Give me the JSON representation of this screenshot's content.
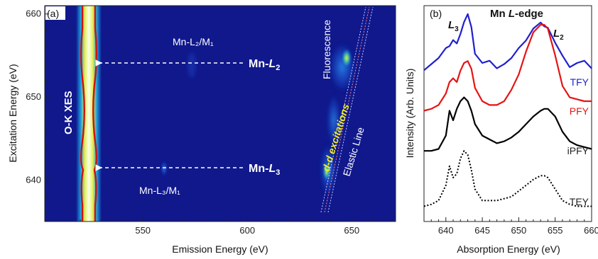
{
  "chart_data": [
    {
      "type": "heatmap",
      "panel_label": "(a)",
      "xlabel": "Emission Energy (eV)",
      "ylabel": "Excitation Energy (eV)",
      "xlim": [
        503,
        671
      ],
      "ylim": [
        635,
        661
      ],
      "xticks": [
        "550",
        "600",
        "650"
      ],
      "xtick_values": [
        550,
        600,
        650
      ],
      "yticks": [
        "640",
        "650",
        "660"
      ],
      "ytick_values": [
        640,
        650,
        660
      ],
      "colors": {
        "background": "#10188c",
        "hot": "#e6f040",
        "red": "#d01010"
      },
      "features": {
        "oxygen_line_emission_center": 525,
        "elastic_line_slope": 1
      },
      "annotations": {
        "o_k_xes": "O-K XES",
        "mn_l2": "Mn-",
        "mn_l2_sub": "L",
        "mn_l2_idx": "2",
        "mn_l3": "Mn-",
        "mn_l3_sub": "L",
        "mn_l3_idx": "3",
        "mn_l2m1": "Mn-L₂/M₁",
        "mn_l3m1": "Mn-L₃/M₁",
        "fluorescence": "Fluorescence",
        "dd": "d-d excitations",
        "elastic": "Elastic Line"
      },
      "arrows": [
        {
          "target": "Mn-L2",
          "excitation_energy": 654
        },
        {
          "target": "Mn-L3",
          "excitation_energy": 641.5
        }
      ]
    },
    {
      "type": "line",
      "panel_label": "(b)",
      "title": "Mn L-edge",
      "title_prefix": "Mn ",
      "title_em": "L",
      "title_suffix": "-edge",
      "xlabel": "Absorption Energy (eV)",
      "ylabel": "Intensity (Arb. Units)",
      "xlim": [
        637,
        660
      ],
      "xticks": [
        "640",
        "645",
        "650",
        "655",
        "660"
      ],
      "xtick_values": [
        640,
        645,
        650,
        655,
        660
      ],
      "peak_labels": {
        "l3": "L",
        "l3_idx": "3",
        "l2": "L",
        "l2_idx": "2"
      },
      "x": [
        637,
        638,
        639,
        640,
        640.5,
        641,
        641.5,
        642,
        642.5,
        643,
        643.5,
        644,
        645,
        646,
        647,
        648,
        649,
        650,
        651,
        652,
        653,
        653.5,
        654,
        655,
        656,
        657,
        658,
        659,
        660
      ],
      "series": [
        {
          "name": "TFY",
          "color": "#1f1fcf",
          "style": "solid",
          "values": [
            0.78,
            0.8,
            0.82,
            0.86,
            0.9,
            0.92,
            0.89,
            0.97,
            1.02,
            1.05,
            0.97,
            0.86,
            0.8,
            0.8,
            0.79,
            0.8,
            0.82,
            0.86,
            0.93,
            0.98,
            1.0,
            1.01,
            0.99,
            0.9,
            0.82,
            0.79,
            0.8,
            0.8,
            0.79
          ]
        },
        {
          "name": "PFY",
          "color": "#e41414",
          "style": "solid",
          "values": [
            0.55,
            0.56,
            0.58,
            0.64,
            0.7,
            0.72,
            0.7,
            0.76,
            0.8,
            0.81,
            0.77,
            0.67,
            0.6,
            0.58,
            0.58,
            0.6,
            0.66,
            0.74,
            0.86,
            0.96,
            1.0,
            1.0,
            0.98,
            0.84,
            0.68,
            0.62,
            0.61,
            0.6,
            0.6
          ]
        },
        {
          "name": "iPFY",
          "color": "#000000",
          "style": "solid",
          "values": [
            0.34,
            0.34,
            0.35,
            0.42,
            0.55,
            0.5,
            0.56,
            0.6,
            0.62,
            0.6,
            0.55,
            0.48,
            0.42,
            0.4,
            0.38,
            0.39,
            0.41,
            0.44,
            0.48,
            0.52,
            0.55,
            0.56,
            0.56,
            0.52,
            0.44,
            0.39,
            0.37,
            0.36,
            0.35
          ]
        },
        {
          "name": "TEY",
          "color": "#000000",
          "style": "dotted",
          "values": [
            0.05,
            0.06,
            0.08,
            0.16,
            0.26,
            0.2,
            0.22,
            0.3,
            0.34,
            0.32,
            0.24,
            0.14,
            0.08,
            0.08,
            0.08,
            0.09,
            0.1,
            0.13,
            0.16,
            0.19,
            0.21,
            0.21,
            0.2,
            0.14,
            0.08,
            0.06,
            0.05,
            0.05,
            0.05
          ]
        }
      ]
    }
  ]
}
